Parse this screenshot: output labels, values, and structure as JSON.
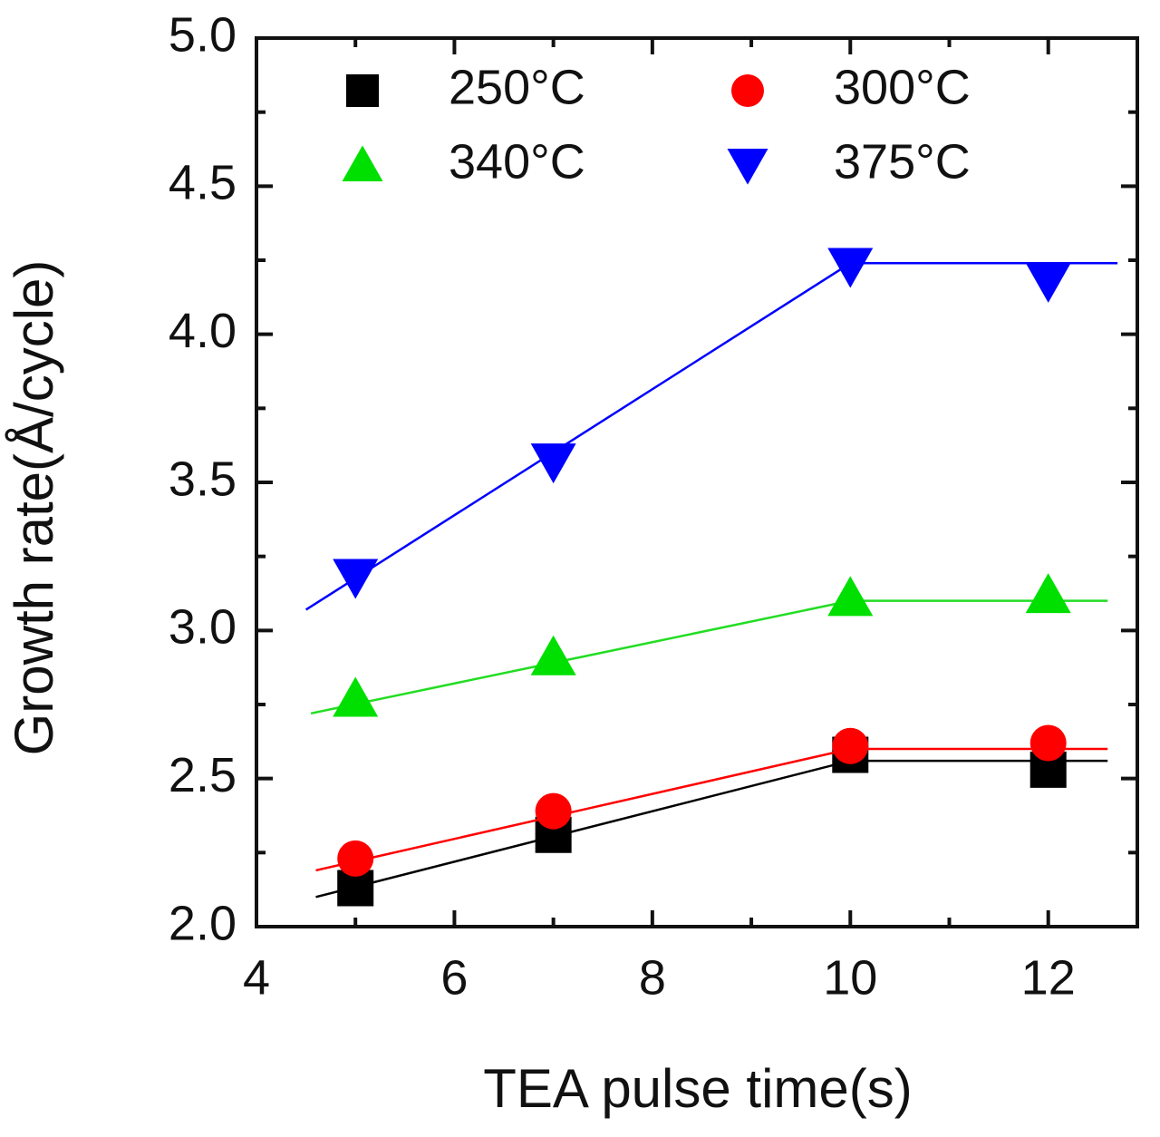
{
  "chart_data": {
    "type": "scatter",
    "xlabel": "TEA pulse time(s)",
    "ylabel": "Growth rate(Å/cycle)",
    "xlim": [
      4,
      12.9
    ],
    "xticks": [
      4,
      6,
      8,
      10,
      12
    ],
    "ylim": [
      2.0,
      5.0
    ],
    "yticks": [
      {
        "value": 2.0,
        "label": "2.0"
      },
      {
        "value": 2.5,
        "label": "2.5"
      },
      {
        "value": 3.0,
        "label": "3.0"
      },
      {
        "value": 3.5,
        "label": "3.5"
      },
      {
        "value": 4.0,
        "label": "4.0"
      },
      {
        "value": 4.5,
        "label": "4.5"
      },
      {
        "value": 5.0,
        "label": "5.0"
      }
    ],
    "legend": "upper-left",
    "series": [
      {
        "name": "250°C",
        "color": "#000000",
        "marker": "square",
        "x": [
          5,
          7,
          10,
          12
        ],
        "values": [
          2.13,
          2.31,
          2.58,
          2.53
        ],
        "fit": {
          "x": [
            4.6,
            10,
            12.6
          ],
          "values": [
            2.1,
            2.56,
            2.56
          ]
        }
      },
      {
        "name": "300°C",
        "color": "#ff0000",
        "marker": "circle",
        "x": [
          5,
          7,
          10,
          12
        ],
        "values": [
          2.23,
          2.39,
          2.61,
          2.62
        ],
        "fit": {
          "x": [
            4.6,
            10,
            12.6
          ],
          "values": [
            2.19,
            2.6,
            2.6
          ]
        }
      },
      {
        "name": "340°C",
        "color": "#00e000",
        "marker": "triangle-up",
        "x": [
          5,
          7,
          10,
          12
        ],
        "values": [
          2.77,
          2.91,
          3.11,
          3.12
        ],
        "fit": {
          "x": [
            4.55,
            10,
            12.6
          ],
          "values": [
            2.72,
            3.1,
            3.1
          ]
        }
      },
      {
        "name": "375°C",
        "color": "#0000ff",
        "marker": "triangle-down",
        "x": [
          5,
          7,
          10,
          12
        ],
        "values": [
          3.18,
          3.57,
          4.23,
          4.18
        ],
        "fit": {
          "x": [
            4.5,
            10,
            12.7
          ],
          "values": [
            3.07,
            4.24,
            4.24
          ]
        }
      }
    ]
  }
}
